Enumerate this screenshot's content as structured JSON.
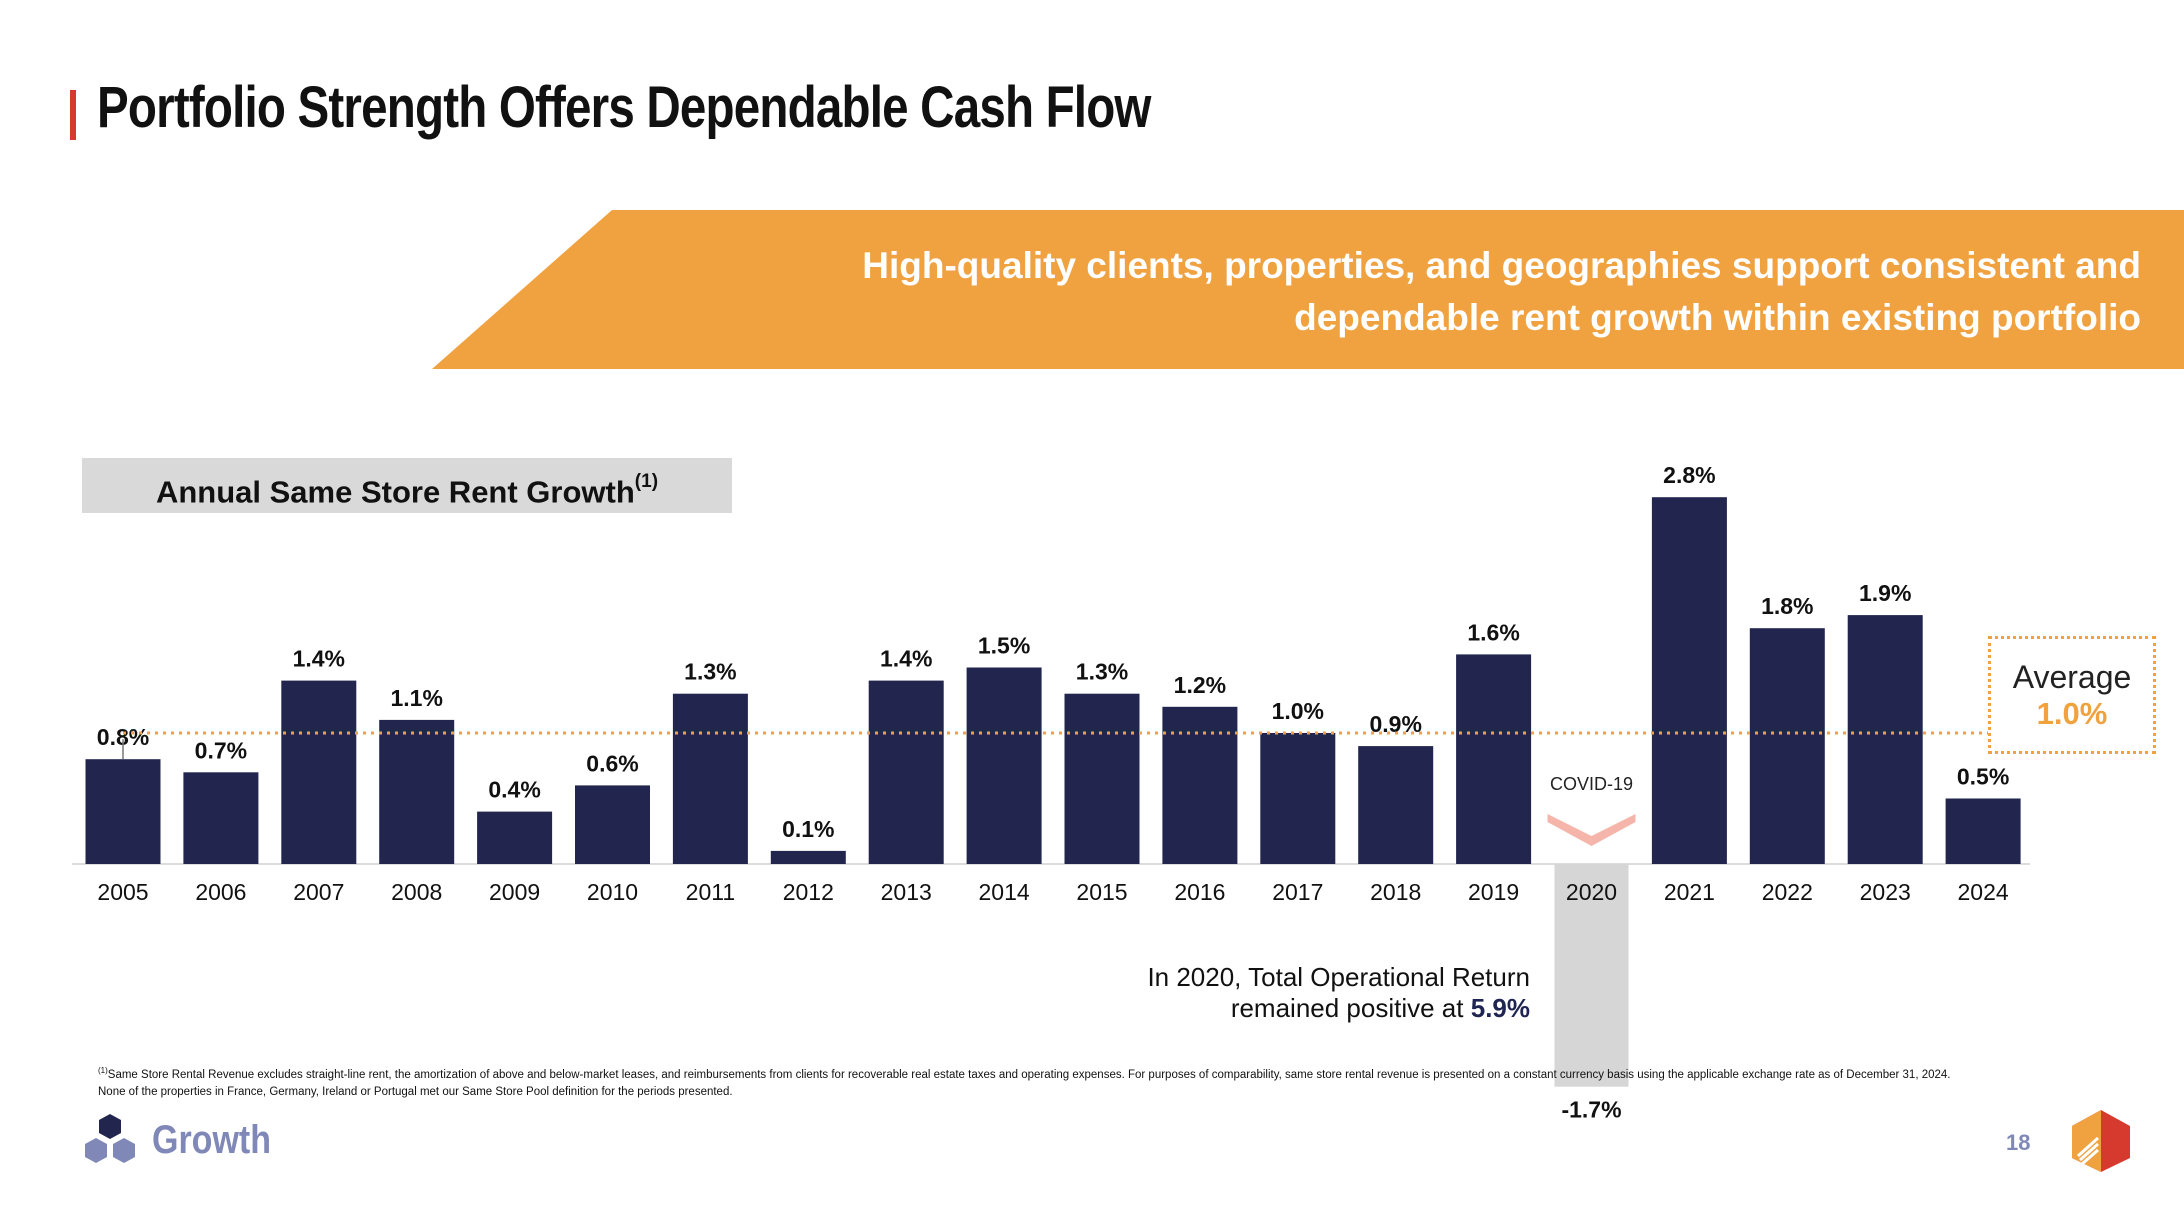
{
  "title": "Portfolio Strength Offers Dependable Cash Flow",
  "banner": {
    "line1": "High-quality clients, properties, and geographies support consistent and",
    "line2": "dependable rent growth within existing portfolio"
  },
  "chart_title": {
    "text": "Annual Same Store Rent Growth",
    "footnote_ref": "(1)"
  },
  "chart_data": {
    "type": "bar",
    "title": "Annual Same Store Rent Growth",
    "categories": [
      "2005",
      "2006",
      "2007",
      "2008",
      "2009",
      "2010",
      "2011",
      "2012",
      "2013",
      "2014",
      "2015",
      "2016",
      "2017",
      "2018",
      "2019",
      "2020",
      "2021",
      "2022",
      "2023",
      "2024"
    ],
    "values": [
      0.8,
      0.7,
      1.4,
      1.1,
      0.4,
      0.6,
      1.3,
      0.1,
      1.4,
      1.5,
      1.3,
      1.2,
      1.0,
      0.9,
      1.6,
      -1.7,
      2.8,
      1.8,
      1.9,
      0.5
    ],
    "labels": [
      "0.8%",
      "0.7%",
      "1.4%",
      "1.1%",
      "0.4%",
      "0.6%",
      "1.3%",
      "0.1%",
      "1.4%",
      "1.5%",
      "1.3%",
      "1.2%",
      "1.0%",
      "0.9%",
      "1.6%",
      "-1.7%",
      "2.8%",
      "1.8%",
      "1.9%",
      "0.5%"
    ],
    "unit": "%",
    "average": 1.0,
    "highlight_category": "2020",
    "ylim": [
      -1.7,
      2.8
    ],
    "xlabel": "",
    "ylabel": "",
    "grid": false
  },
  "colors": {
    "bar": "#22264e",
    "negative_bar": "#d6d6d6",
    "accent": "#f0a140",
    "title_bar": "#d63a2f",
    "covid_arrow": "#f5b5aa",
    "muted": "#8088b8"
  },
  "annotations": {
    "covid": "COVID-19",
    "note_line1": "In 2020, Total Operational Return",
    "note_line2_prefix": "remained positive at",
    "note_value": "5.9%"
  },
  "average_box": {
    "label": "Average",
    "value": "1.0%"
  },
  "footnote": {
    "marker": "(1)",
    "text": "Same Store Rental Revenue excludes straight-line rent, the amortization of above and below-market leases, and reimbursements from clients for recoverable real estate taxes and operating expenses. For purposes of comparability, same store rental revenue is presented on a constant currency basis using the applicable exchange rate as of December 31, 2024. None of the properties in France, Germany, Ireland or Portugal met our Same Store Pool definition for the periods presented."
  },
  "footer": {
    "section": "Growth",
    "page": "18"
  }
}
